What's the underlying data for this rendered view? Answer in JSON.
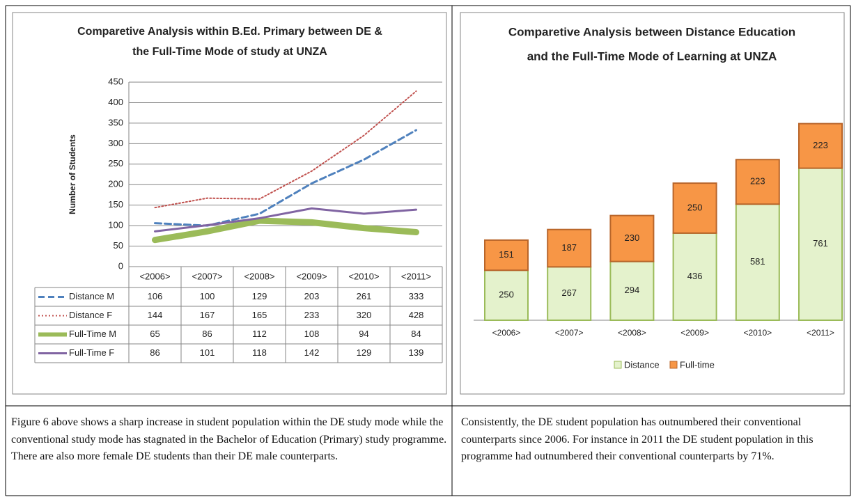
{
  "chart_data": [
    {
      "type": "line",
      "title": [
        "Comparetive Analysis within B.Ed. Primary between DE &",
        "the Full-Time Mode of study at UNZA"
      ],
      "y_label": "Number of Students",
      "categories": [
        "<2006>",
        "<2007>",
        "<2008>",
        "<2009>",
        "<2010>",
        "<2011>"
      ],
      "ylim": [
        0,
        450
      ],
      "yticks": [
        0,
        50,
        100,
        150,
        200,
        250,
        300,
        350,
        400,
        450
      ],
      "grid": true,
      "series": [
        {
          "name": "Distance M",
          "color": "#4f81bd",
          "linestyle": "dashed",
          "linewidth": 3,
          "values": [
            106,
            100,
            129,
            203,
            261,
            333
          ]
        },
        {
          "name": "Distance F",
          "color": "#c0504d",
          "linestyle": "dotted",
          "linewidth": 2,
          "values": [
            144,
            167,
            165,
            233,
            320,
            428
          ]
        },
        {
          "name": "Full-Time M",
          "color": "#9bbb59",
          "linestyle": "solid",
          "linewidth": 9,
          "values": [
            65,
            86,
            112,
            108,
            94,
            84
          ]
        },
        {
          "name": "Full-Time F",
          "color": "#8064a2",
          "linestyle": "solid",
          "linewidth": 3,
          "values": [
            86,
            101,
            118,
            142,
            129,
            139
          ]
        }
      ]
    },
    {
      "type": "stacked-bar",
      "title": [
        "Comparetive Analysis between Distance Education",
        "and the Full-Time Mode of Learning  at UNZA"
      ],
      "categories": [
        "<2006>",
        "<2007>",
        "<2008>",
        "<2009>",
        "<2010>",
        "<2011>"
      ],
      "legend": "bottom",
      "series": [
        {
          "name": "Distance",
          "color": "#e4f2cc",
          "values": [
            250,
            267,
            294,
            436,
            581,
            761
          ]
        },
        {
          "name": "Full-time",
          "color": "#f79646",
          "values": [
            151,
            187,
            230,
            250,
            223,
            223
          ]
        }
      ]
    }
  ],
  "paragraphs": [
    "Figure 6 above shows a sharp increase in student population within the DE study mode while the conventional study mode has stagnated in the Bachelor of Education (Primary) study programme. There are also more female DE students than their DE male counterparts.",
    "Consistently, the DE student population has outnumbered their conventional counterparts since 2006. For instance in 2011 the DE student population in this programme had outnumbered their conventional counterparts by 71%."
  ]
}
